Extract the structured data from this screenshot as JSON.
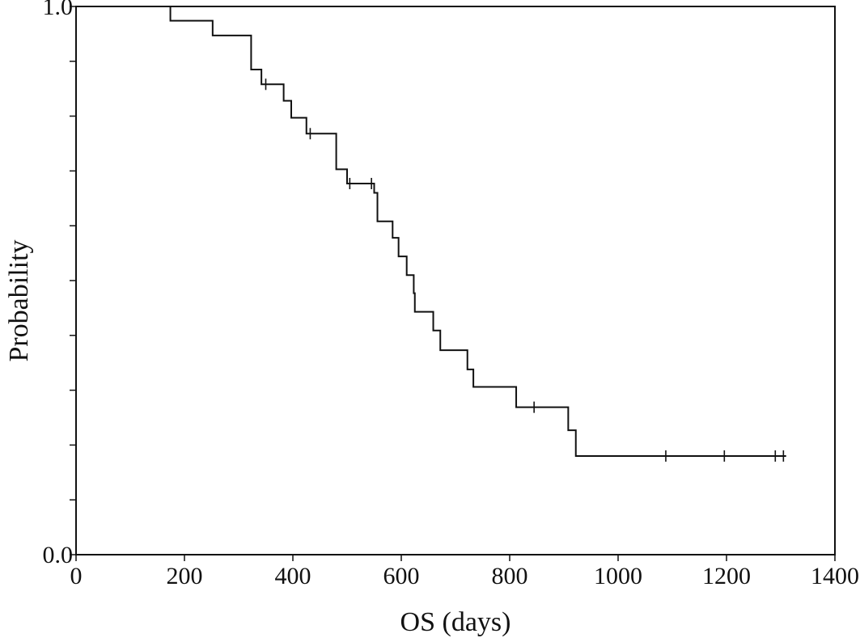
{
  "chart_data": {
    "type": "line",
    "subtype": "kaplan-meier step",
    "title": "",
    "xlabel": "OS (days)",
    "ylabel": "Probability",
    "xlim": [
      0,
      1400
    ],
    "ylim": [
      0.0,
      1.0
    ],
    "x_ticks": [
      0,
      200,
      400,
      600,
      800,
      1000,
      1200,
      1400
    ],
    "x_tick_labels": [
      "0",
      "200",
      "400",
      "600",
      "800",
      "1000",
      "1200",
      "1400"
    ],
    "y_ticks": [
      0.0,
      0.1,
      0.2,
      0.3,
      0.4,
      0.5,
      0.6,
      0.7,
      0.8,
      0.9,
      1.0
    ],
    "y_tick_labels": [
      "0.0",
      "",
      "",
      "",
      "",
      "",
      "",
      "",
      "",
      "",
      "1.0"
    ],
    "grid": false,
    "legend": "none",
    "series": [
      {
        "steps": [
          {
            "x": 0,
            "y": 1.0
          },
          {
            "x": 174,
            "y": 0.974
          },
          {
            "x": 252,
            "y": 0.947
          },
          {
            "x": 323,
            "y": 0.885
          },
          {
            "x": 342,
            "y": 0.858
          },
          {
            "x": 383,
            "y": 0.828
          },
          {
            "x": 397,
            "y": 0.797
          },
          {
            "x": 425,
            "y": 0.768
          },
          {
            "x": 480,
            "y": 0.703
          },
          {
            "x": 500,
            "y": 0.677
          },
          {
            "x": 550,
            "y": 0.66
          },
          {
            "x": 556,
            "y": 0.608
          },
          {
            "x": 584,
            "y": 0.578
          },
          {
            "x": 595,
            "y": 0.544
          },
          {
            "x": 610,
            "y": 0.51
          },
          {
            "x": 623,
            "y": 0.477
          },
          {
            "x": 625,
            "y": 0.443
          },
          {
            "x": 659,
            "y": 0.409
          },
          {
            "x": 672,
            "y": 0.373
          },
          {
            "x": 722,
            "y": 0.338
          },
          {
            "x": 733,
            "y": 0.306
          },
          {
            "x": 812,
            "y": 0.269
          },
          {
            "x": 908,
            "y": 0.227
          },
          {
            "x": 922,
            "y": 0.18
          }
        ],
        "end_x": 1310,
        "censored": [
          {
            "x": 350,
            "y": 0.858
          },
          {
            "x": 432,
            "y": 0.768
          },
          {
            "x": 505,
            "y": 0.677
          },
          {
            "x": 545,
            "y": 0.677
          },
          {
            "x": 845,
            "y": 0.269
          },
          {
            "x": 1088,
            "y": 0.18
          },
          {
            "x": 1196,
            "y": 0.18
          },
          {
            "x": 1290,
            "y": 0.18
          },
          {
            "x": 1305,
            "y": 0.18
          }
        ]
      }
    ]
  }
}
